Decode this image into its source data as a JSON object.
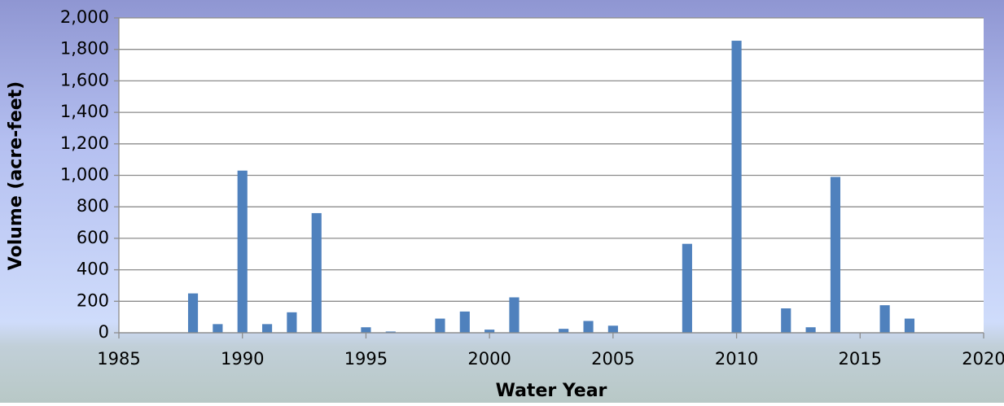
{
  "chart_data": {
    "type": "bar",
    "x_label": "Water Year",
    "y_label": "Volume (acre-feet)",
    "x": [
      1988,
      1989,
      1990,
      1991,
      1992,
      1993,
      1995,
      1996,
      1998,
      1999,
      2000,
      2001,
      2003,
      2004,
      2005,
      2008,
      2010,
      2012,
      2013,
      2014,
      2016,
      2017
    ],
    "values": [
      250,
      55,
      1030,
      55,
      130,
      760,
      35,
      8,
      90,
      135,
      20,
      225,
      25,
      75,
      45,
      565,
      1855,
      155,
      35,
      990,
      175,
      90
    ],
    "color": "#4f81bd",
    "xlim": [
      1985,
      2020
    ],
    "xticks": [
      1985,
      1990,
      1995,
      2000,
      2005,
      2010,
      2015,
      2020
    ],
    "ylim": [
      0,
      2000
    ],
    "yticks": [
      0,
      200,
      400,
      600,
      800,
      {
        "value": 1000,
        "label": "1,000"
      },
      {
        "value": 1200,
        "label": "1,200"
      },
      {
        "value": 1400,
        "label": "1,400"
      },
      {
        "value": 1600,
        "label": "1,600"
      },
      {
        "value": 1800,
        "label": "1,800"
      },
      {
        "value": 2000,
        "label": "2,000"
      }
    ],
    "grid": true
  }
}
